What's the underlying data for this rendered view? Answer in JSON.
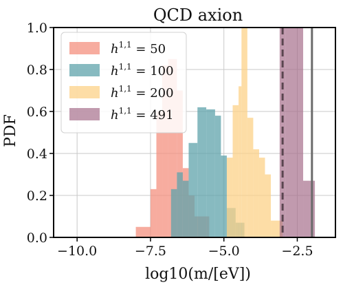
{
  "chart_data": {
    "type": "histogram",
    "title": "QCD axion",
    "xlabel": "log10(m/[eV])",
    "ylabel": "PDF",
    "xlim": [
      -10.8,
      -1.2
    ],
    "ylim": [
      0,
      1.0
    ],
    "xticks": [
      -10.0,
      -7.5,
      -5.0,
      -2.5
    ],
    "xtick_labels": [
      "−10.0",
      "−7.5",
      "−5.0",
      "−2.5"
    ],
    "yticks": [
      0.0,
      0.2,
      0.4,
      0.6,
      0.8,
      1.0
    ],
    "ytick_labels": [
      "0.0",
      "0.2",
      "0.4",
      "0.6",
      "0.8",
      "1.0"
    ],
    "grid": true,
    "legend_position": "top-left",
    "series": [
      {
        "name": "h^{1,1} = 50",
        "legend_base": "h",
        "legend_sup": "1,1",
        "legend_rest": " = 50",
        "color": "#f4907f",
        "opacity": 0.75,
        "bins": [
          {
            "x0": -8.0,
            "x1": -7.5,
            "y": 0.05
          },
          {
            "x0": -7.5,
            "x1": -7.3,
            "y": 0.23
          },
          {
            "x0": -7.3,
            "x1": -7.1,
            "y": 0.6
          },
          {
            "x0": -7.1,
            "x1": -6.9,
            "y": 0.82
          },
          {
            "x0": -6.9,
            "x1": -6.6,
            "y": 0.85
          },
          {
            "x0": -6.6,
            "x1": -6.4,
            "y": 0.7
          },
          {
            "x0": -6.4,
            "x1": -6.2,
            "y": 0.33
          },
          {
            "x0": -6.2,
            "x1": -6.0,
            "y": 0.2
          },
          {
            "x0": -6.0,
            "x1": -5.5,
            "y": 0.1
          }
        ]
      },
      {
        "name": "h^{1,1} = 100",
        "legend_base": "h",
        "legend_sup": "1,1",
        "legend_rest": " = 100",
        "color": "#5fa3ab",
        "opacity": 0.75,
        "bins": [
          {
            "x0": -6.8,
            "x1": -6.6,
            "y": 0.23
          },
          {
            "x0": -6.6,
            "x1": -6.4,
            "y": 0.31
          },
          {
            "x0": -6.4,
            "x1": -6.2,
            "y": 0.27
          },
          {
            "x0": -6.2,
            "x1": -5.9,
            "y": 0.45
          },
          {
            "x0": -5.9,
            "x1": -5.6,
            "y": 0.62
          },
          {
            "x0": -5.6,
            "x1": -5.3,
            "y": 0.61
          },
          {
            "x0": -5.3,
            "x1": -5.1,
            "y": 0.58
          },
          {
            "x0": -5.1,
            "x1": -4.9,
            "y": 0.39
          },
          {
            "x0": -4.9,
            "x1": -4.6,
            "y": 0.14
          },
          {
            "x0": -4.6,
            "x1": -4.3,
            "y": 0.07
          }
        ]
      },
      {
        "name": "h^{1,1} = 200",
        "legend_base": "h",
        "legend_sup": "1,1",
        "legend_rest": " = 200",
        "color": "#fcd188",
        "opacity": 0.75,
        "bins": [
          {
            "x0": -4.9,
            "x1": -4.7,
            "y": 0.38
          },
          {
            "x0": -4.7,
            "x1": -4.5,
            "y": 0.63
          },
          {
            "x0": -4.5,
            "x1": -4.4,
            "y": 0.72
          },
          {
            "x0": -4.4,
            "x1": -4.2,
            "y": 1.0
          },
          {
            "x0": -4.2,
            "x1": -4.0,
            "y": 0.57
          },
          {
            "x0": -4.0,
            "x1": -3.8,
            "y": 0.42
          },
          {
            "x0": -3.8,
            "x1": -3.6,
            "y": 0.38
          },
          {
            "x0": -3.6,
            "x1": -3.4,
            "y": 0.3
          },
          {
            "x0": -3.4,
            "x1": -3.0,
            "y": 0.08
          }
        ]
      },
      {
        "name": "h^{1,1} = 491",
        "legend_base": "h",
        "legend_sup": "1,1",
        "legend_rest": " = 491",
        "color": "#a66f8c",
        "opacity": 0.7,
        "bins": [
          {
            "x0": -3.1,
            "x1": -2.9,
            "y": 1.0
          },
          {
            "x0": -2.9,
            "x1": -2.3,
            "y": 1.0
          },
          {
            "x0": -2.3,
            "x1": -1.9,
            "y": 0.27
          }
        ]
      }
    ],
    "vlines": [
      {
        "x": -3.0,
        "style": "dashed",
        "color": "#5a4550"
      },
      {
        "x": -2.0,
        "style": "solid",
        "color": "#6b6b6b"
      }
    ]
  }
}
